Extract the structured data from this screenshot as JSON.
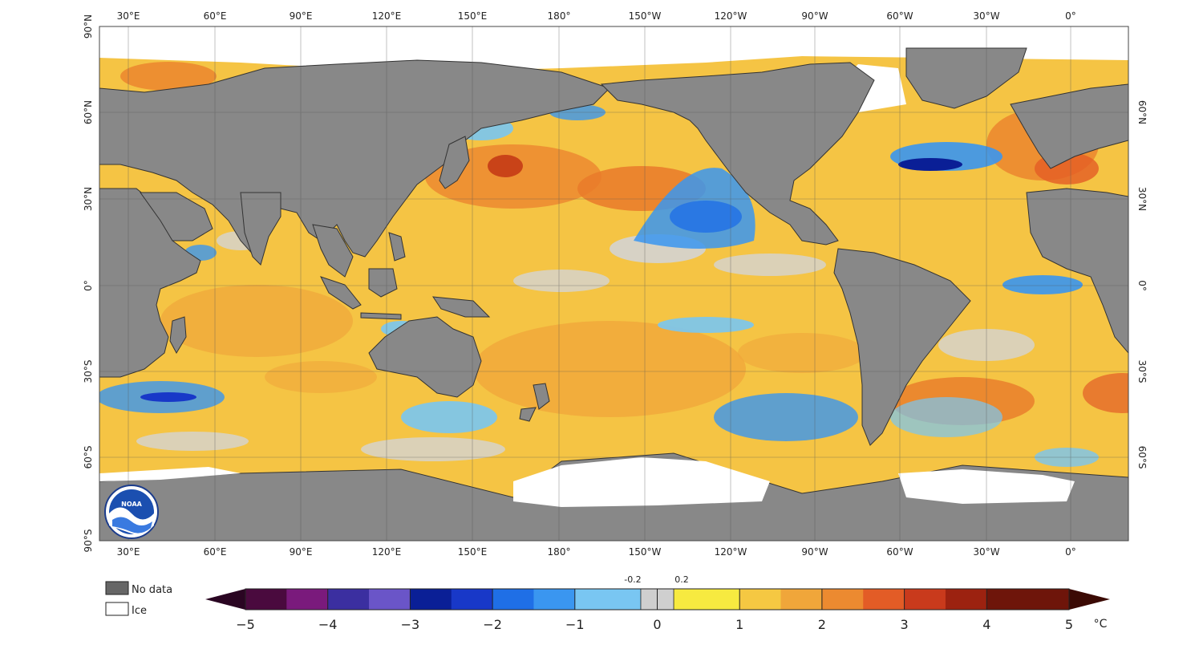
{
  "lon_labels": [
    "30°E",
    "60°E",
    "90°E",
    "120°E",
    "150°E",
    "180°",
    "150°W",
    "120°W",
    "90°W",
    "60°W",
    "30°W",
    "0°"
  ],
  "lat_labels_left": [
    "90°N",
    "60°N",
    "30°N",
    "0°",
    "30°S",
    "60°S",
    "90°S"
  ],
  "lat_labels_right": [
    "60°N",
    "30°N",
    "0°",
    "30°S",
    "60°S"
  ],
  "legend": {
    "no_data": "No data",
    "ice": "Ice"
  },
  "colorbar": {
    "ticks": [
      "−5",
      "−4",
      "−3",
      "−2",
      "−1",
      "0",
      "1",
      "2",
      "3",
      "4",
      "5"
    ],
    "minor_labels": [
      "-0.2",
      "0.2"
    ],
    "unit": "°C",
    "colors": [
      "#4a0a3e",
      "#7a1a7c",
      "#3b2fa0",
      "#6a55c8",
      "#0a1f96",
      "#1838c8",
      "#1f6fe6",
      "#3a96f0",
      "#79c6f2",
      "#cfcfcf",
      "#f7ea40",
      "#f5c842",
      "#f0a63a",
      "#ec8a30",
      "#e35c26",
      "#c93a1c",
      "#9c2210",
      "#6e150a"
    ],
    "neg_arrow_color": "#2a0522",
    "pos_arrow_color": "#3b0a04"
  },
  "colors": {
    "land": "#888888",
    "ocean_base": "#f5c444",
    "warm": "#ef9a2f",
    "hot": "#e05a20",
    "cool": "#4ea6ee",
    "cold": "#1b4fd6",
    "neutral": "#d4d4d4",
    "ice": "#ffffff"
  },
  "logo_text": "NOAA"
}
